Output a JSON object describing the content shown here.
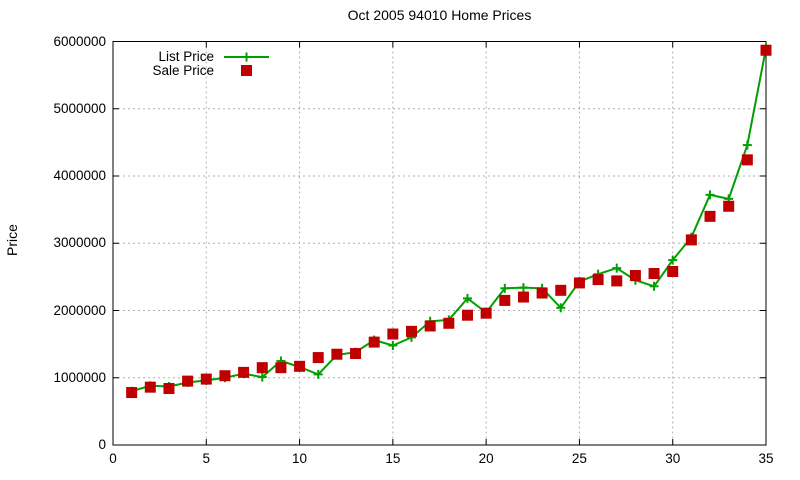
{
  "title": "Oct 2005 94010 Home Prices",
  "axes": {
    "xlim": [
      0,
      35
    ],
    "ylim": [
      0,
      6000000
    ],
    "x_ticks": [
      0,
      5,
      10,
      15,
      20,
      25,
      30,
      35
    ],
    "x_tick_labels": [
      "0",
      "5",
      "10",
      "15",
      "20",
      "25",
      "30",
      "35"
    ],
    "y_ticks": [
      0,
      1000000,
      2000000,
      3000000,
      4000000,
      5000000,
      6000000
    ],
    "y_tick_labels": [
      "0",
      "1000000",
      "2000000",
      "3000000",
      "4000000",
      "5000000",
      "6000000"
    ],
    "ylabel": "Price",
    "grid": true
  },
  "legend": {
    "position": "top-left",
    "items": [
      {
        "label": "List Price",
        "sample": "line-plus-marker",
        "color": "#00a000"
      },
      {
        "label": "Sale Price",
        "sample": "filled-square",
        "color": "#c00000"
      }
    ]
  },
  "colors": {
    "list_price": "#00a000",
    "sale_price": "#c00000",
    "grid": "#b0b0b0",
    "axis": "#000000",
    "background": "#ffffff"
  },
  "chart_data": {
    "type": "line",
    "title": "Oct 2005 94010 Home Prices",
    "xlabel": "",
    "ylabel": "Price",
    "xlim": [
      0,
      35
    ],
    "ylim": [
      0,
      6000000
    ],
    "grid": true,
    "legend_position": "top-left",
    "x": [
      1,
      2,
      3,
      4,
      5,
      6,
      7,
      8,
      9,
      10,
      11,
      12,
      13,
      14,
      15,
      16,
      17,
      18,
      19,
      20,
      21,
      22,
      23,
      24,
      25,
      26,
      27,
      28,
      29,
      30,
      31,
      32,
      33,
      34,
      35
    ],
    "series": [
      {
        "name": "List Price",
        "style": "line-with-plus-markers",
        "color": "#00a000",
        "values": [
          800000,
          880000,
          870000,
          930000,
          960000,
          1000000,
          1060000,
          1010000,
          1250000,
          1160000,
          1050000,
          1340000,
          1380000,
          1560000,
          1480000,
          1600000,
          1840000,
          1860000,
          2180000,
          1970000,
          2330000,
          2340000,
          2330000,
          2040000,
          2430000,
          2540000,
          2630000,
          2450000,
          2360000,
          2750000,
          3090000,
          3720000,
          3660000,
          4460000,
          5900000
        ]
      },
      {
        "name": "Sale Price",
        "style": "square-markers-only",
        "color": "#c00000",
        "values": [
          780000,
          860000,
          840000,
          950000,
          980000,
          1030000,
          1080000,
          1150000,
          1150000,
          1170000,
          1300000,
          1350000,
          1360000,
          1530000,
          1650000,
          1690000,
          1770000,
          1810000,
          1930000,
          1960000,
          2150000,
          2200000,
          2260000,
          2300000,
          2410000,
          2460000,
          2440000,
          2520000,
          2550000,
          2580000,
          3050000,
          3400000,
          3550000,
          4240000,
          5870000
        ]
      }
    ]
  }
}
